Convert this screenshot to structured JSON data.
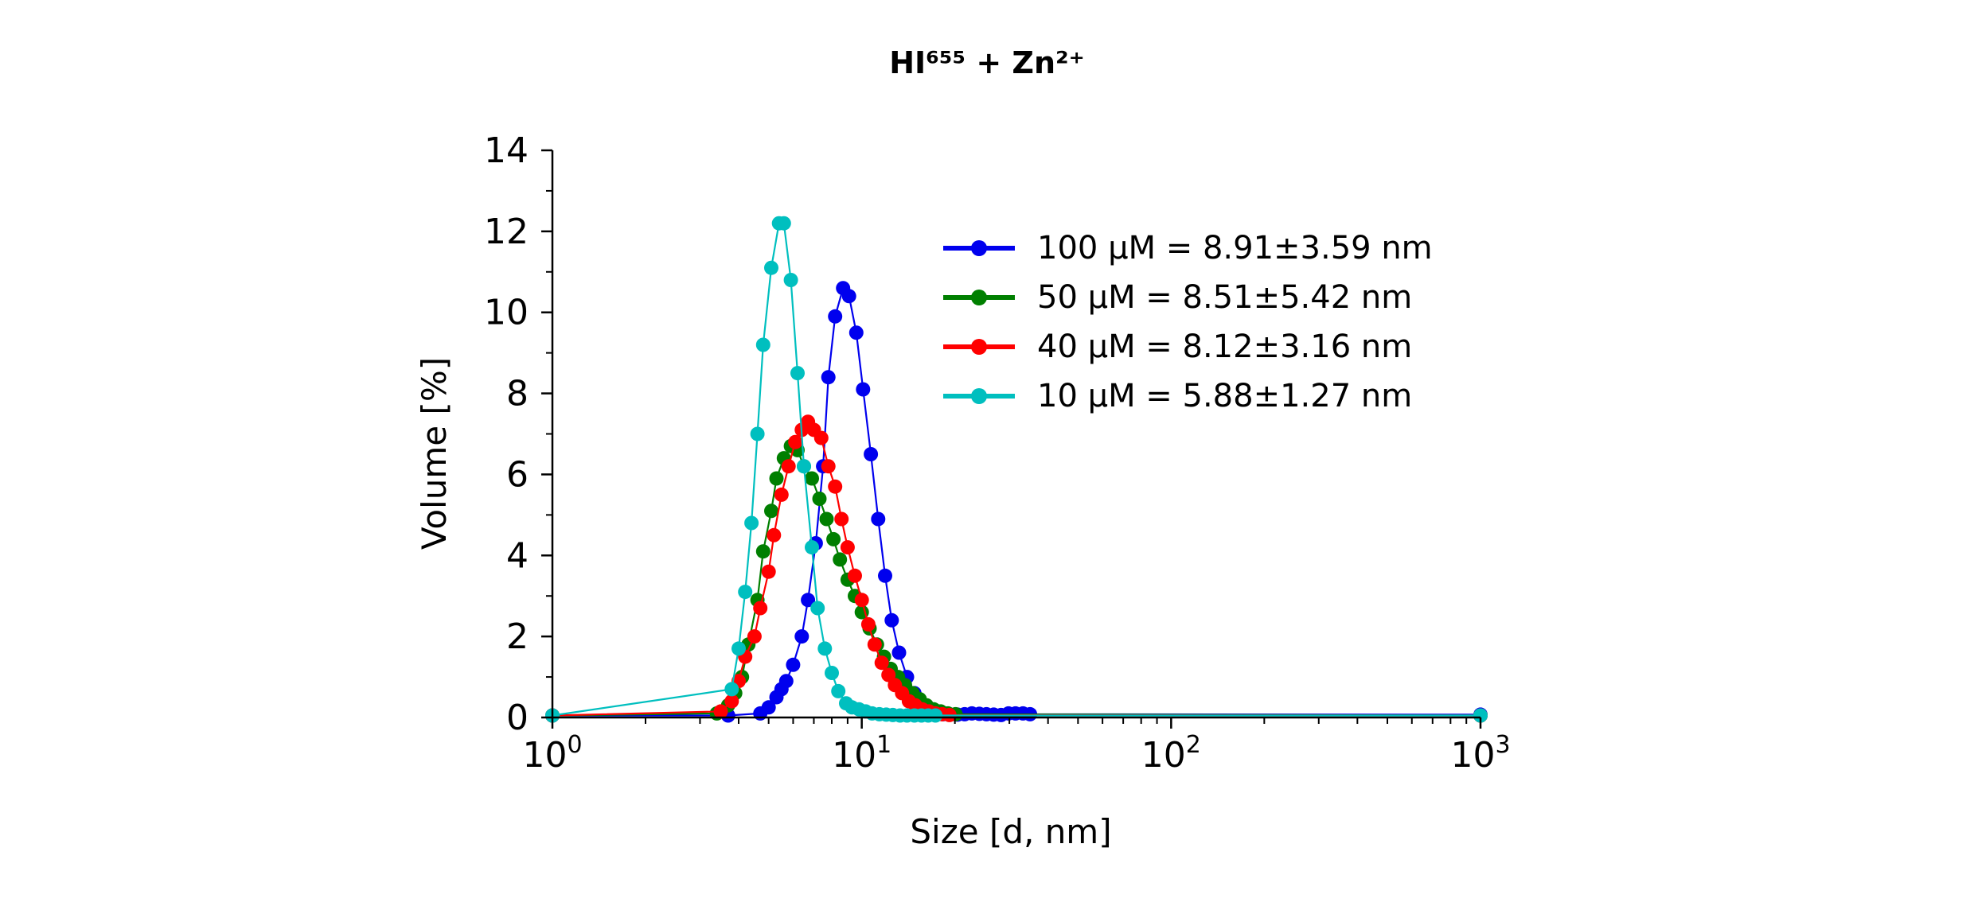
{
  "chart_data": {
    "type": "line",
    "title": "HI⁶⁵⁵ + Zn²⁺",
    "xlabel": "Size [d, nm]",
    "ylabel": "Volume [%]",
    "xscale": "log",
    "xlim": [
      1,
      1000
    ],
    "ylim": [
      0,
      14
    ],
    "x_major_ticks": [
      {
        "value": 1,
        "base": "10",
        "exp": "0"
      },
      {
        "value": 10,
        "base": "10",
        "exp": "1"
      },
      {
        "value": 100,
        "base": "10",
        "exp": "2"
      },
      {
        "value": 1000,
        "base": "10",
        "exp": "3"
      }
    ],
    "y_ticks": [
      0,
      2,
      4,
      6,
      8,
      10,
      12,
      14
    ],
    "grid": false,
    "legend_position": "top-right",
    "series": [
      {
        "name": "100 µM = 8.91±3.59 nm",
        "color": "#0000ee",
        "x": [
          1.0,
          3.7,
          4.7,
          5.0,
          5.3,
          5.5,
          5.7,
          6.0,
          6.4,
          6.7,
          7.1,
          7.5,
          7.8,
          8.2,
          8.7,
          9.1,
          9.6,
          10.1,
          10.7,
          11.3,
          11.9,
          12.5,
          13.2,
          14.0,
          14.8,
          15.6,
          16.4,
          17.4,
          18.3,
          19.3,
          20.4,
          21.5,
          22.7,
          24.0,
          25.3,
          26.7,
          28.2,
          29.8,
          31.4,
          33.2,
          35.0,
          1000.0
        ],
        "y": [
          0.05,
          0.05,
          0.1,
          0.25,
          0.5,
          0.7,
          0.9,
          1.3,
          2.0,
          2.9,
          4.3,
          6.2,
          8.4,
          9.9,
          10.6,
          10.4,
          9.5,
          8.1,
          6.5,
          4.9,
          3.5,
          2.4,
          1.6,
          1.0,
          0.6,
          0.35,
          0.2,
          0.12,
          0.08,
          0.07,
          0.07,
          0.08,
          0.1,
          0.09,
          0.08,
          0.07,
          0.06,
          0.1,
          0.1,
          0.1,
          0.08,
          0.07
        ]
      },
      {
        "name": "50 µM = 8.51±5.42 nm",
        "color": "#007f00",
        "x": [
          1.0,
          3.4,
          3.7,
          3.9,
          4.1,
          4.3,
          4.6,
          4.8,
          5.1,
          5.3,
          5.6,
          5.9,
          6.2,
          6.5,
          6.9,
          7.3,
          7.7,
          8.1,
          8.5,
          9.0,
          9.5,
          10.0,
          10.6,
          11.2,
          11.8,
          12.4,
          13.1,
          13.8,
          14.6,
          15.4,
          16.2,
          17.1,
          18.0,
          19.0,
          20.1,
          1000.0
        ],
        "y": [
          0.05,
          0.1,
          0.3,
          0.6,
          1.0,
          1.8,
          2.9,
          4.1,
          5.1,
          5.9,
          6.4,
          6.7,
          6.6,
          6.2,
          5.9,
          5.4,
          4.9,
          4.4,
          3.9,
          3.4,
          3.0,
          2.6,
          2.2,
          1.8,
          1.5,
          1.2,
          1.0,
          0.8,
          0.6,
          0.45,
          0.3,
          0.2,
          0.15,
          0.1,
          0.08,
          0.05
        ]
      },
      {
        "name": "40 µM = 8.12±3.16 nm",
        "color": "#ff0000",
        "x": [
          1.0,
          3.5,
          3.8,
          4.0,
          4.2,
          4.5,
          4.7,
          5.0,
          5.2,
          5.5,
          5.8,
          6.1,
          6.4,
          6.7,
          7.0,
          7.4,
          7.8,
          8.2,
          8.6,
          9.0,
          9.5,
          10.0,
          10.5,
          11.0,
          11.6,
          12.2,
          12.8,
          13.5,
          14.2,
          14.9,
          15.7,
          16.5,
          17.3,
          18.2,
          19.2,
          1000.0
        ],
        "y": [
          0.05,
          0.15,
          0.4,
          0.9,
          1.5,
          2.0,
          2.7,
          3.6,
          4.5,
          5.5,
          6.2,
          6.8,
          7.1,
          7.3,
          7.1,
          6.9,
          6.2,
          5.7,
          4.9,
          4.2,
          3.5,
          2.9,
          2.3,
          1.8,
          1.35,
          1.05,
          0.8,
          0.6,
          0.4,
          0.3,
          0.2,
          0.15,
          0.1,
          0.08,
          0.06,
          0.05
        ]
      },
      {
        "name": "10 µM = 5.88±1.27 nm",
        "color": "#00bfbf",
        "x": [
          1.0,
          3.8,
          4.0,
          4.2,
          4.4,
          4.6,
          4.8,
          5.1,
          5.4,
          5.6,
          5.9,
          6.2,
          6.5,
          6.9,
          7.2,
          7.6,
          8.0,
          8.4,
          8.9,
          9.3,
          9.8,
          10.3,
          10.8,
          11.4,
          12.0,
          12.6,
          13.3,
          14.0,
          14.8,
          15.6,
          16.4,
          17.3,
          1000.0
        ],
        "y": [
          0.05,
          0.7,
          1.7,
          3.1,
          4.8,
          7.0,
          9.2,
          11.1,
          12.2,
          12.2,
          10.8,
          8.5,
          6.2,
          4.2,
          2.7,
          1.7,
          1.1,
          0.65,
          0.35,
          0.25,
          0.2,
          0.15,
          0.1,
          0.08,
          0.07,
          0.06,
          0.05,
          0.05,
          0.05,
          0.05,
          0.05,
          0.05,
          0.05
        ]
      }
    ]
  }
}
